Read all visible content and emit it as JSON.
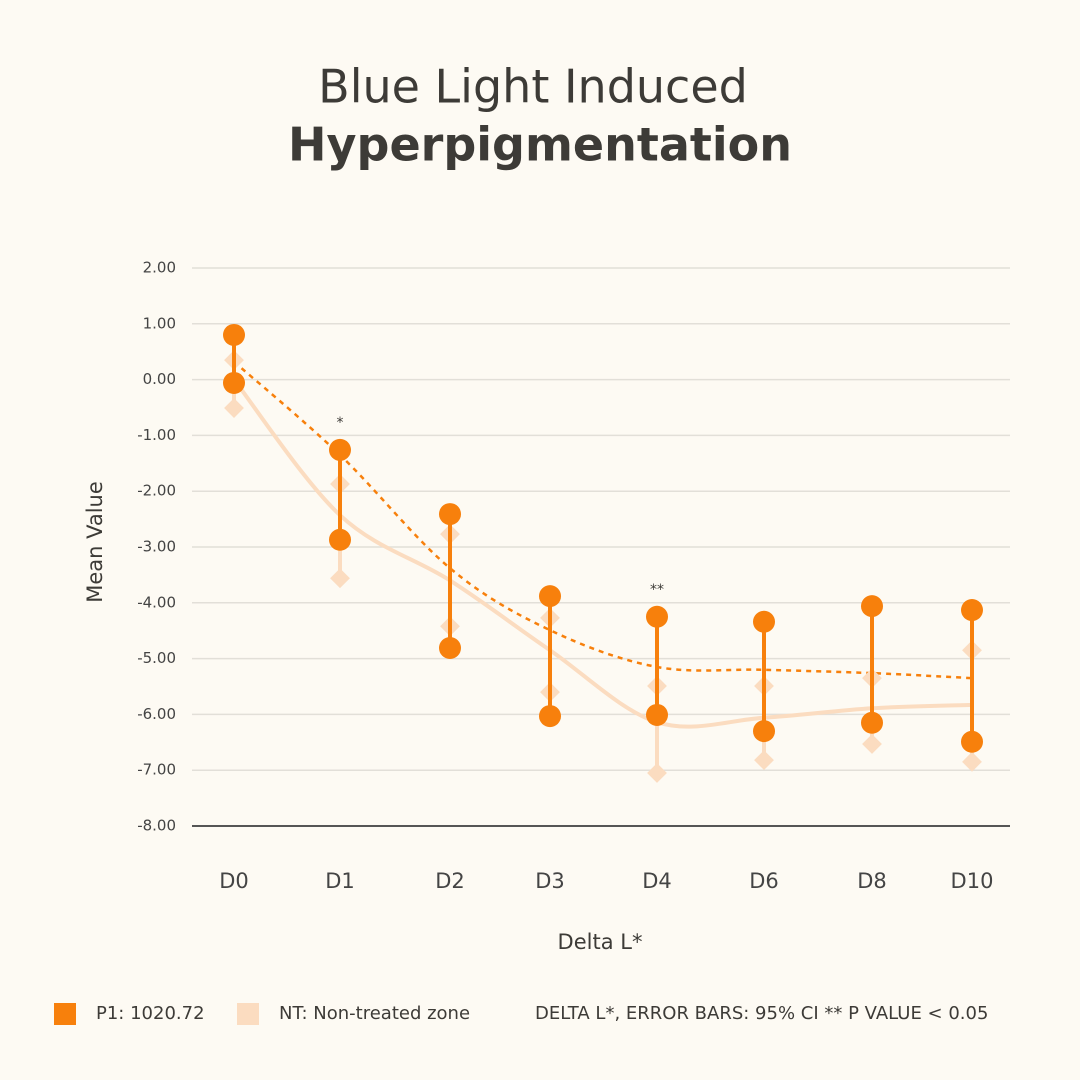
{
  "chart_data": {
    "type": "line",
    "title": "Blue Light Induced",
    "subtitle": "Hyperpigmentation",
    "y_label": "Mean Value",
    "x_label": "Delta L*",
    "footnote": "DELTA L*, ERROR BARS: 95% CI ** P VALUE < 0.05",
    "categories": [
      "D0",
      "D1",
      "D2",
      "D3",
      "D4",
      "D6",
      "D8",
      "D10"
    ],
    "significance": [
      null,
      "*",
      null,
      null,
      "**",
      null,
      null,
      null
    ],
    "ylim": [
      -8,
      2
    ],
    "yticks": [
      {
        "value": 2,
        "label": "2.00"
      },
      {
        "value": 1,
        "label": "1.00"
      },
      {
        "value": 0,
        "label": "0.00"
      },
      {
        "value": -1,
        "label": "-1.00"
      },
      {
        "value": -2,
        "label": "-2.00"
      },
      {
        "value": -3,
        "label": "-3.00"
      },
      {
        "value": -4,
        "label": "-4.00"
      },
      {
        "value": -5,
        "label": "-5.00"
      },
      {
        "value": -6,
        "label": "-6.00"
      },
      {
        "value": -7,
        "label": "-7.00"
      },
      {
        "value": -8,
        "label": "-8.00"
      }
    ],
    "grid": true,
    "series": [
      {
        "name": "NT: Non-treated zone",
        "color": "#fbdcc0",
        "line_style": "solid",
        "marker": "diamond",
        "values": [
          0.0,
          -2.43,
          -3.6,
          -4.85,
          -6.14,
          -6.06,
          -5.89,
          -5.83
        ],
        "upper": [
          0.35,
          -1.87,
          -2.77,
          -4.27,
          -5.49,
          -5.49,
          -5.35,
          -4.85
        ],
        "lower": [
          -0.51,
          -3.56,
          -4.42,
          -5.6,
          -7.05,
          -6.82,
          -6.53,
          -6.85
        ]
      },
      {
        "name": "P1: 1020.72",
        "color": "#f7800c",
        "line_style": "dashed",
        "marker": "circle",
        "values": [
          0.32,
          -1.35,
          -3.38,
          -4.49,
          -5.15,
          -5.2,
          -5.26,
          -5.35
        ],
        "upper": [
          0.8,
          -1.26,
          -2.41,
          -3.88,
          -4.25,
          -4.34,
          -4.06,
          -4.13
        ],
        "lower": [
          -0.06,
          -2.87,
          -4.81,
          -6.03,
          -6.01,
          -6.3,
          -6.15,
          -6.49
        ]
      }
    ]
  }
}
